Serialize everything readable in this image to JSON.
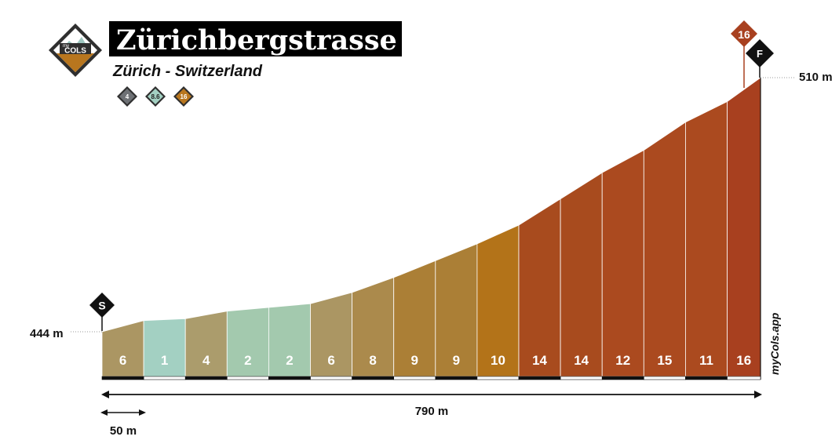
{
  "header": {
    "brand_small": "my",
    "brand_big": "COLS",
    "title": "Zürichbergstrasse",
    "subtitle": "Zürich - Switzerland",
    "badges": [
      {
        "value": "4",
        "color": "#6e7175"
      },
      {
        "value": "8.6",
        "color": "#a3d0c2"
      },
      {
        "value": "16",
        "color": "#b8761e"
      }
    ],
    "watermark": "myCols.app"
  },
  "markers": {
    "start": "S",
    "finish": "F",
    "max_gradient": "16"
  },
  "chart_data": {
    "type": "area",
    "title": "",
    "start_elevation_label": "444 m",
    "end_elevation_label": "510 m",
    "distance_label": "790 m",
    "scale_label": "50 m",
    "x_unit": "m",
    "y_unit": "m",
    "xlim": [
      0,
      790
    ],
    "ylim": [
      444,
      510
    ],
    "segment_length": 50,
    "gradients": [
      6,
      1,
      4,
      2,
      2,
      6,
      8,
      9,
      9,
      10,
      14,
      14,
      12,
      15,
      11,
      16
    ],
    "segment_colors": [
      "#ab9663",
      "#a3d0c2",
      "#ab9c6c",
      "#a3c9ae",
      "#a3c9ae",
      "#ab9663",
      "#ab8a4c",
      "#ab7f36",
      "#ab7f36",
      "#b37319",
      "#a84b1e",
      "#a84b1e",
      "#ab4a1f",
      "#ab4a1f",
      "#ab4a1f",
      "#a8401f"
    ]
  }
}
